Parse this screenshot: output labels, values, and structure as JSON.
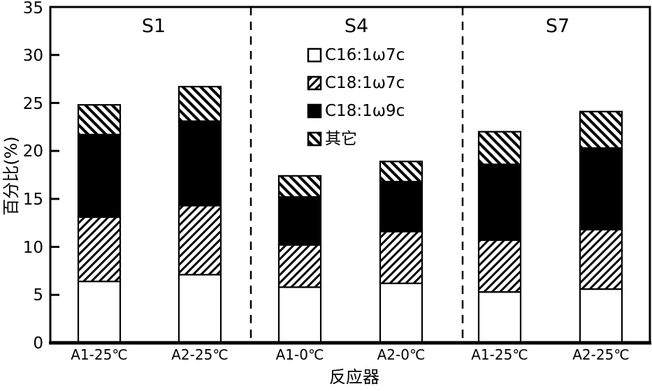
{
  "chart_data": {
    "type": "bar",
    "stacked": true,
    "title": "",
    "xlabel": "反应器",
    "ylabel": "百分比(%)",
    "ylim": [
      0,
      35
    ],
    "yticks": [
      0,
      5,
      10,
      15,
      20,
      25,
      30,
      35
    ],
    "grid": false,
    "legend_position": "top-center-inside",
    "sections": [
      "S1",
      "S4",
      "S7"
    ],
    "section_category_ranges": [
      [
        0,
        1
      ],
      [
        2,
        3
      ],
      [
        4,
        5
      ]
    ],
    "categories": [
      "A1-25℃",
      "A2-25℃",
      "A1-0℃",
      "A2-0℃",
      "A1-25℃",
      "A2-25℃"
    ],
    "series": [
      {
        "name": "C16:1ω7c",
        "pattern": "solid-white",
        "values": [
          6.4,
          7.1,
          5.8,
          6.2,
          5.3,
          5.6
        ]
      },
      {
        "name": "C18:1ω7c",
        "pattern": "hatch-forward",
        "values": [
          6.7,
          7.2,
          4.4,
          5.4,
          5.4,
          6.2
        ]
      },
      {
        "name": "C18:1ω9c",
        "pattern": "solid-black",
        "values": [
          8.6,
          8.8,
          5.0,
          5.2,
          7.9,
          8.5
        ]
      },
      {
        "name": "其它",
        "pattern": "hatch-backward",
        "values": [
          3.1,
          3.6,
          2.2,
          2.1,
          3.4,
          3.8
        ]
      }
    ],
    "bar_totals": [
      24.8,
      26.7,
      17.4,
      18.9,
      22.0,
      24.1
    ],
    "colors": {
      "foreground": "#000000",
      "background": "#ffffff"
    }
  }
}
